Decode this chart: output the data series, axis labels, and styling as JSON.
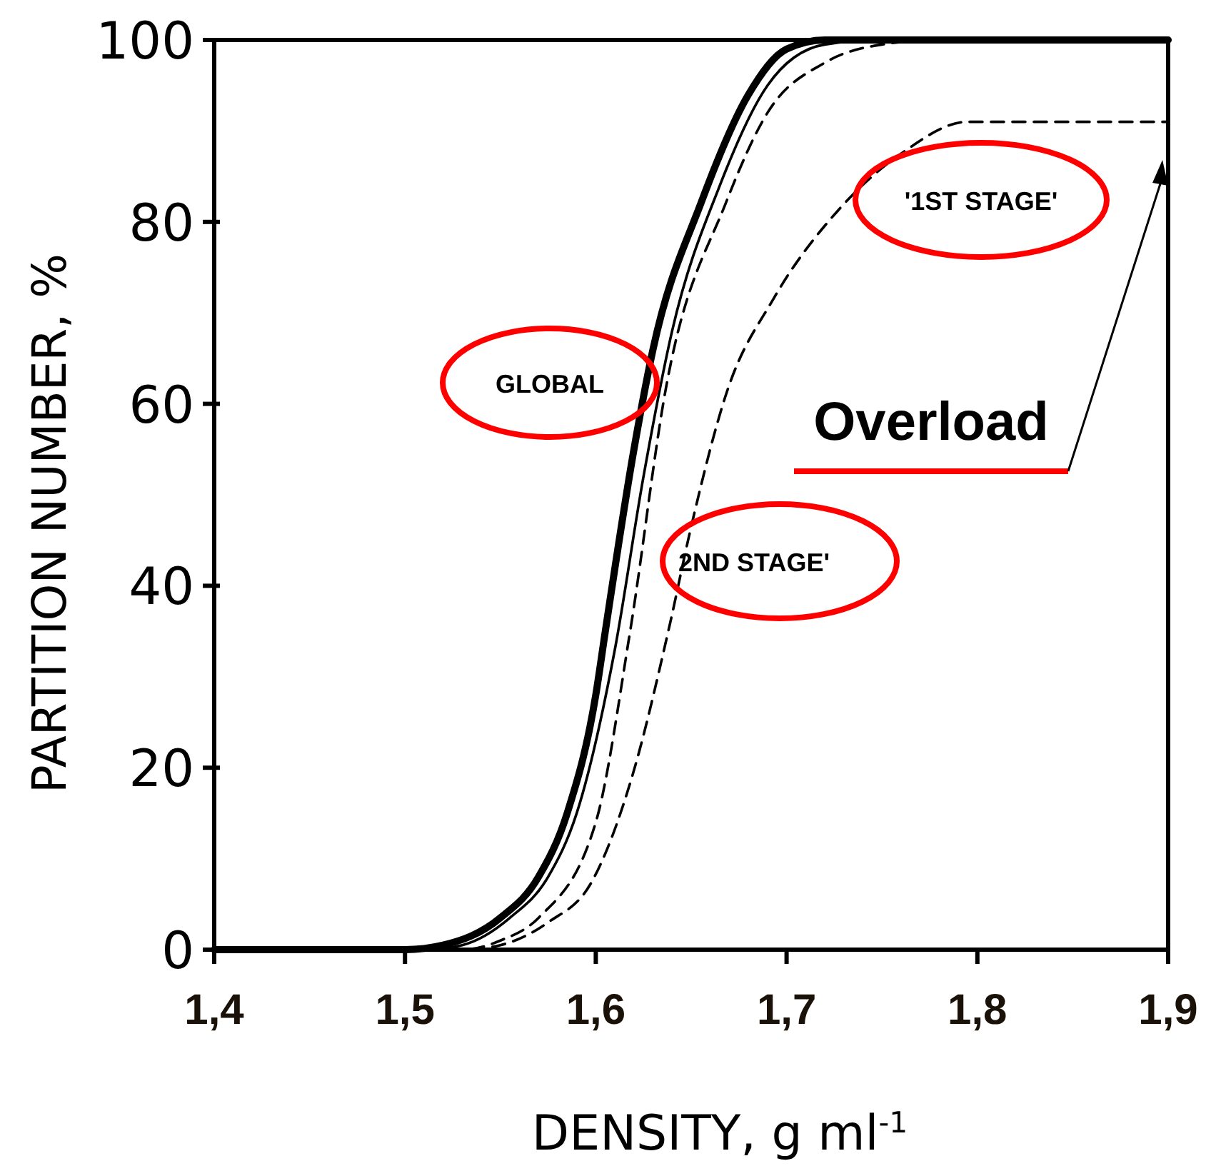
{
  "chart_data": {
    "type": "line",
    "xlabel": "DENSITY, g ml$^{-1}$",
    "ylabel": "PARTITION NUMBER, %",
    "xlim": [
      1.4,
      1.9
    ],
    "ylim": [
      0,
      100
    ],
    "xticks": [
      {
        "value": 1.4,
        "label": "1,4"
      },
      {
        "value": 1.5,
        "label": "1,5"
      },
      {
        "value": 1.6,
        "label": "1,6"
      },
      {
        "value": 1.7,
        "label": "1,7"
      },
      {
        "value": 1.8,
        "label": "1,8"
      },
      {
        "value": 1.9,
        "label": "1,9"
      }
    ],
    "yticks": [
      0,
      20,
      40,
      60,
      80,
      100
    ],
    "grid": false,
    "legend": false,
    "series": [
      {
        "name": "GLOBAL",
        "color": "#000000",
        "line_style": "solid",
        "x": [
          1.4,
          1.5,
          1.52,
          1.55,
          1.57,
          1.585,
          1.6,
          1.605,
          1.62,
          1.63,
          1.655,
          1.68,
          1.7,
          1.72,
          1.9
        ],
        "values": [
          0,
          0,
          0.5,
          3.5,
          8,
          15,
          28,
          35,
          55,
          66,
          82,
          94,
          99,
          100,
          100
        ]
      },
      {
        "color": "#000000",
        "line_style": "solid",
        "x": [
          1.4,
          1.51,
          1.53,
          1.555,
          1.575,
          1.59,
          1.61,
          1.625,
          1.64,
          1.665,
          1.69,
          1.72,
          1.75,
          1.9
        ],
        "values": [
          0,
          0,
          0.5,
          3.5,
          8,
          15,
          33,
          52,
          68,
          84,
          95,
          99.5,
          100,
          100
        ]
      },
      {
        "color": "#000000",
        "line_style": "dashed",
        "x": [
          1.4,
          1.53,
          1.55,
          1.57,
          1.6,
          1.618,
          1.637,
          1.668,
          1.69,
          1.72,
          1.75,
          1.78,
          1.9
        ],
        "values": [
          0,
          0,
          1,
          3.5,
          14,
          35,
          62,
          82,
          92,
          97.5,
          99.5,
          100,
          100
        ]
      },
      {
        "name": "'1ST STAGE'",
        "color": "#000000",
        "line_style": "dashed",
        "x": [
          1.4,
          1.53,
          1.55,
          1.575,
          1.598,
          1.619,
          1.638,
          1.65,
          1.669,
          1.693,
          1.728,
          1.76,
          1.795,
          1.9
        ],
        "values": [
          0,
          0,
          0.5,
          3,
          7.5,
          19,
          35,
          46.5,
          61.5,
          71.5,
          81.5,
          87.5,
          91,
          91
        ]
      }
    ],
    "annotations": [
      "Overload",
      "2ND STAGE'"
    ]
  }
}
